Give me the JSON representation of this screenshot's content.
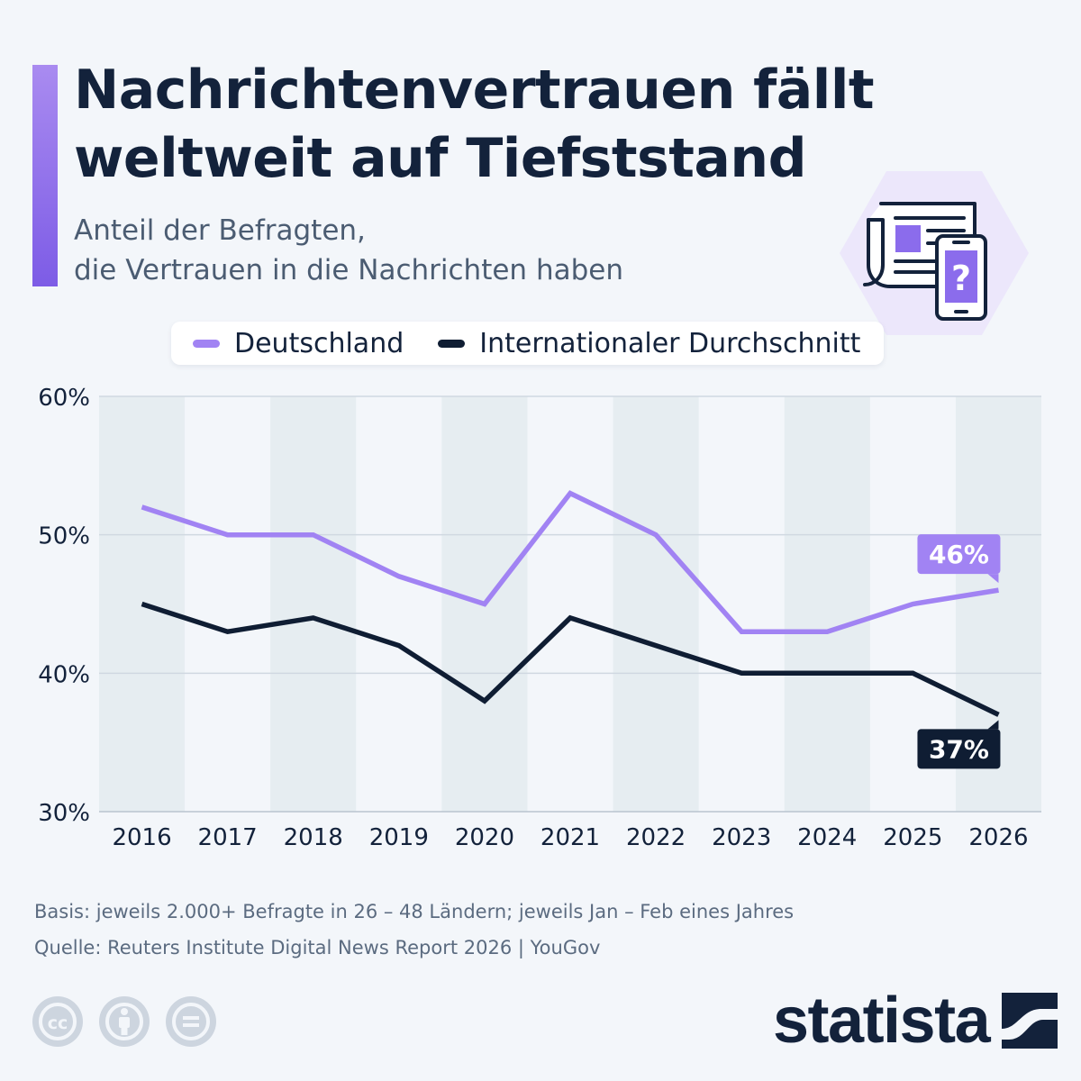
{
  "header": {
    "title_line1": "Nachrichtenvertrauen fällt",
    "title_line2": "weltweit auf Tiefststand",
    "subtitle_line1": "Anteil der Befragten,",
    "subtitle_line2": "die Vertrauen in die Nachrichten haben",
    "hero_icon": "newspaper-smartphone-question-icon"
  },
  "colors": {
    "accent": "#8b6cec",
    "germany": "#a183f3",
    "international": "#0f1d33",
    "stripe": "#e6edf1"
  },
  "chart_data": {
    "type": "line",
    "x": [
      "2016",
      "2017",
      "2018",
      "2019",
      "2020",
      "2021",
      "2022",
      "2023",
      "2024",
      "2025",
      "2026"
    ],
    "series": [
      {
        "name": "Deutschland",
        "values": [
          52,
          50,
          50,
          47,
          45,
          53,
          50,
          43,
          43,
          45,
          46
        ],
        "color": "#a183f3"
      },
      {
        "name": "Internationaler Durchschnitt",
        "values": [
          45,
          43,
          44,
          42,
          38,
          44,
          42,
          40,
          40,
          40,
          37
        ],
        "color": "#0f1d33"
      }
    ],
    "ylim": [
      30,
      60
    ],
    "yticks": [
      "30%",
      "40%",
      "50%",
      "60%"
    ],
    "yticks_values": [
      30,
      40,
      50,
      60
    ],
    "grid": true,
    "legend": "top",
    "end_labels": [
      {
        "series": "Deutschland",
        "text": "46%"
      },
      {
        "series": "Internationaler Durchschnitt",
        "text": "37%"
      }
    ]
  },
  "footer": {
    "basis": "Basis: jeweils 2.000+ Befragte in 26 – 48 Ländern; jeweils Jan – Feb eines Jahres",
    "source": "Quelle: Reuters Institute Digital News Report 2026 | YouGov",
    "license_icons": [
      "creative-commons-icon",
      "attribution-icon",
      "no-derivatives-icon"
    ],
    "brand": "statista",
    "brand_icon": "statista-logo-icon"
  }
}
